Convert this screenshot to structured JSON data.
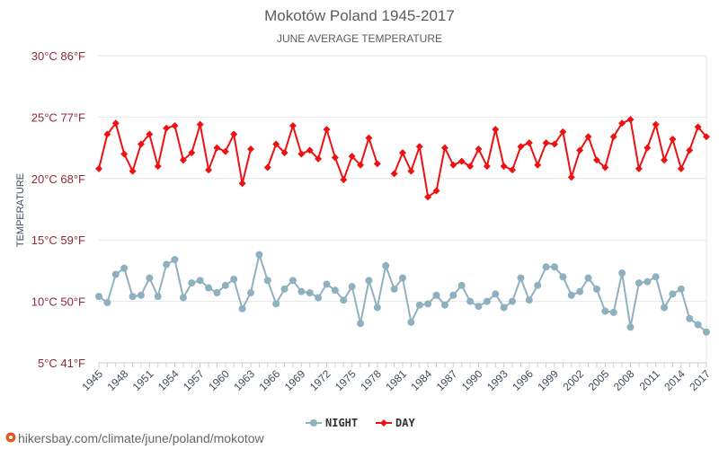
{
  "chart_data": {
    "type": "line",
    "title": "Mokotów Poland 1945-2017",
    "subtitle": "JUNE AVERAGE TEMPERATURE",
    "ylabel": "TEMPERATURE",
    "xlabel": "",
    "ylim": [
      5,
      30
    ],
    "xlim": [
      1945,
      2017
    ],
    "y_ticks": [
      {
        "value": 5,
        "label": "5°C 41°F"
      },
      {
        "value": 10,
        "label": "10°C 50°F"
      },
      {
        "value": 15,
        "label": "15°C 59°F"
      },
      {
        "value": 20,
        "label": "20°C 68°F"
      },
      {
        "value": 25,
        "label": "25°C 77°F"
      },
      {
        "value": 30,
        "label": "30°C 86°F"
      }
    ],
    "x_ticks": [
      1945,
      1948,
      1951,
      1954,
      1957,
      1960,
      1963,
      1966,
      1969,
      1972,
      1975,
      1978,
      1981,
      1984,
      1987,
      1990,
      1993,
      1996,
      1999,
      2002,
      2005,
      2008,
      2011,
      2014,
      2017
    ],
    "grid": "horizontal",
    "legend": "bottom-center",
    "x": [
      1945,
      1946,
      1947,
      1948,
      1949,
      1950,
      1951,
      1952,
      1953,
      1954,
      1955,
      1956,
      1957,
      1958,
      1959,
      1960,
      1961,
      1962,
      1963,
      1964,
      1965,
      1966,
      1967,
      1968,
      1969,
      1970,
      1971,
      1972,
      1973,
      1974,
      1975,
      1976,
      1977,
      1978,
      1979,
      1980,
      1981,
      1982,
      1983,
      1984,
      1985,
      1986,
      1987,
      1988,
      1989,
      1990,
      1991,
      1992,
      1993,
      1994,
      1995,
      1996,
      1997,
      1998,
      1999,
      2000,
      2001,
      2002,
      2003,
      2004,
      2005,
      2006,
      2007,
      2008,
      2009,
      2010,
      2011,
      2012,
      2013,
      2014,
      2015,
      2016,
      2017
    ],
    "series": [
      {
        "name": "NIGHT",
        "color": "#8fb1bf",
        "marker": "circle",
        "values": [
          10.4,
          9.9,
          12.2,
          12.7,
          10.4,
          10.5,
          11.9,
          10.4,
          13.0,
          13.4,
          10.3,
          11.5,
          11.7,
          11.1,
          10.7,
          11.3,
          11.8,
          9.4,
          10.7,
          13.8,
          11.7,
          9.8,
          11.0,
          11.7,
          10.8,
          10.7,
          10.3,
          11.4,
          10.9,
          10.1,
          11.2,
          8.2,
          11.7,
          9.5,
          12.9,
          11.0,
          11.9,
          8.3,
          9.7,
          9.8,
          10.5,
          9.7,
          10.5,
          11.3,
          10.0,
          9.6,
          10.0,
          10.6,
          9.5,
          10.0,
          11.9,
          10.1,
          11.3,
          12.8,
          12.8,
          12.0,
          10.5,
          10.8,
          11.9,
          11.0,
          9.2,
          9.1,
          12.3,
          7.9,
          11.5,
          11.6,
          12.0,
          9.5,
          10.6,
          11.0,
          8.6,
          8.1,
          7.5
        ]
      },
      {
        "name": "DAY",
        "color": "#ee1111",
        "marker": "diamond",
        "values": [
          20.8,
          23.6,
          24.5,
          22.0,
          20.6,
          22.8,
          23.6,
          21.0,
          24.1,
          24.3,
          21.5,
          22.1,
          24.4,
          20.7,
          22.5,
          22.2,
          23.6,
          19.6,
          22.4,
          null,
          20.9,
          22.8,
          22.1,
          24.3,
          22.0,
          22.3,
          21.6,
          24.0,
          21.7,
          19.9,
          21.8,
          21.1,
          23.3,
          21.2,
          null,
          20.4,
          22.1,
          20.6,
          22.6,
          18.5,
          19.0,
          22.5,
          21.1,
          21.4,
          21.0,
          22.4,
          21.0,
          24.0,
          21.0,
          20.7,
          22.6,
          22.9,
          21.1,
          22.9,
          22.8,
          23.8,
          20.1,
          22.3,
          23.4,
          21.5,
          20.9,
          23.4,
          24.5,
          24.8,
          20.8,
          22.5,
          24.4,
          21.5,
          23.2,
          20.8,
          22.3,
          24.2,
          23.4
        ]
      }
    ]
  },
  "source_text": "hikersbay.com/climate/june/poland/mokotow"
}
